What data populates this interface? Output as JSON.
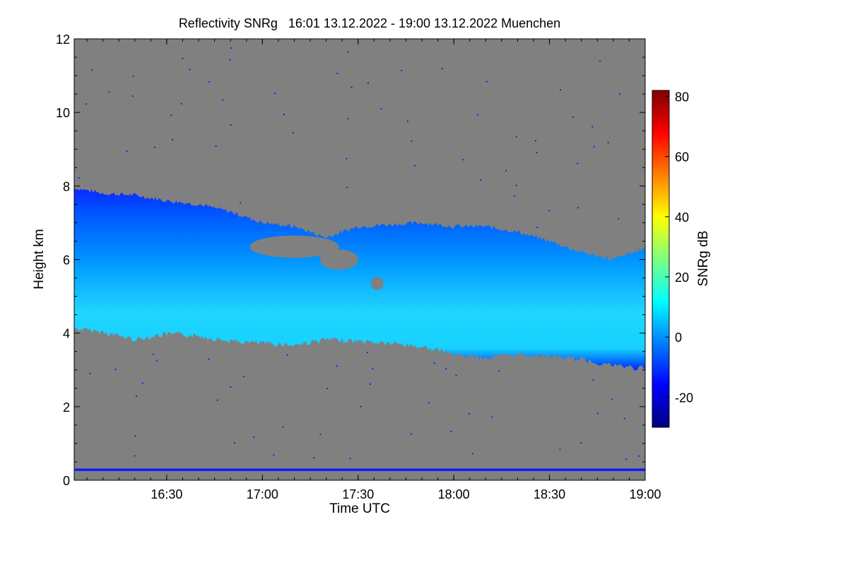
{
  "chart_data": {
    "type": "heatmap",
    "title": "Reflectivity SNRg   16:01 13.12.2022 - 19:00 13.12.2022 Muenchen",
    "xlabel": "Time UTC",
    "ylabel": "Height km",
    "x_unit": "minutes UTC",
    "xlim": [
      961,
      1140
    ],
    "ylim": [
      0,
      12
    ],
    "x_ticks": [
      {
        "value": 990,
        "label": "16:30"
      },
      {
        "value": 1020,
        "label": "17:00"
      },
      {
        "value": 1050,
        "label": "17:30"
      },
      {
        "value": 1080,
        "label": "18:00"
      },
      {
        "value": 1110,
        "label": "18:30"
      },
      {
        "value": 1140,
        "label": "19:00"
      }
    ],
    "y_ticks": [
      {
        "value": 0,
        "label": "0"
      },
      {
        "value": 2,
        "label": "2"
      },
      {
        "value": 4,
        "label": "4"
      },
      {
        "value": 6,
        "label": "6"
      },
      {
        "value": 8,
        "label": "8"
      },
      {
        "value": 10,
        "label": "10"
      },
      {
        "value": 12,
        "label": "12"
      }
    ],
    "colorbar": {
      "label": "SNRg dB",
      "range": [
        -30,
        82
      ],
      "ticks": [
        {
          "value": -20,
          "label": "-20"
        },
        {
          "value": 0,
          "label": "0"
        },
        {
          "value": 20,
          "label": "20"
        },
        {
          "value": 40,
          "label": "40"
        },
        {
          "value": 60,
          "label": "60"
        },
        {
          "value": 80,
          "label": "80"
        }
      ],
      "stops": [
        "#00007f",
        "#0000ff",
        "#007fff",
        "#00ffff",
        "#7fff7f",
        "#ffff00",
        "#ff7f00",
        "#ff0000",
        "#7f0000"
      ]
    },
    "background_color": "#808080",
    "cloud_layer": {
      "description_values_dB": "top edge noisy near -20 dB, core 0 to 10 dB",
      "top_km": [
        {
          "t": 961,
          "h": 7.95
        },
        {
          "t": 970,
          "h": 7.8
        },
        {
          "t": 980,
          "h": 7.75
        },
        {
          "t": 990,
          "h": 7.6
        },
        {
          "t": 1000,
          "h": 7.5
        },
        {
          "t": 1010,
          "h": 7.3
        },
        {
          "t": 1020,
          "h": 7.0
        },
        {
          "t": 1030,
          "h": 6.9
        },
        {
          "t": 1040,
          "h": 6.6
        },
        {
          "t": 1050,
          "h": 6.9
        },
        {
          "t": 1060,
          "h": 6.95
        },
        {
          "t": 1070,
          "h": 7.0
        },
        {
          "t": 1080,
          "h": 6.9
        },
        {
          "t": 1090,
          "h": 6.9
        },
        {
          "t": 1100,
          "h": 6.75
        },
        {
          "t": 1110,
          "h": 6.5
        },
        {
          "t": 1120,
          "h": 6.2
        },
        {
          "t": 1130,
          "h": 6.0
        },
        {
          "t": 1140,
          "h": 6.3
        }
      ],
      "base_km": [
        {
          "t": 961,
          "h": 4.2
        },
        {
          "t": 970,
          "h": 4.1
        },
        {
          "t": 980,
          "h": 3.9
        },
        {
          "t": 990,
          "h": 4.05
        },
        {
          "t": 1000,
          "h": 4.0
        },
        {
          "t": 1010,
          "h": 3.85
        },
        {
          "t": 1020,
          "h": 3.8
        },
        {
          "t": 1030,
          "h": 3.75
        },
        {
          "t": 1040,
          "h": 3.9
        },
        {
          "t": 1050,
          "h": 3.85
        },
        {
          "t": 1060,
          "h": 3.8
        },
        {
          "t": 1070,
          "h": 3.7
        },
        {
          "t": 1080,
          "h": 3.5
        },
        {
          "t": 1090,
          "h": 3.4
        },
        {
          "t": 1100,
          "h": 3.5
        },
        {
          "t": 1110,
          "h": 3.45
        },
        {
          "t": 1120,
          "h": 3.35
        },
        {
          "t": 1130,
          "h": 3.2
        },
        {
          "t": 1140,
          "h": 3.1
        }
      ]
    },
    "ground_band_km": [
      0.25,
      0.32
    ],
    "ground_band_color": "#0a1eff"
  }
}
